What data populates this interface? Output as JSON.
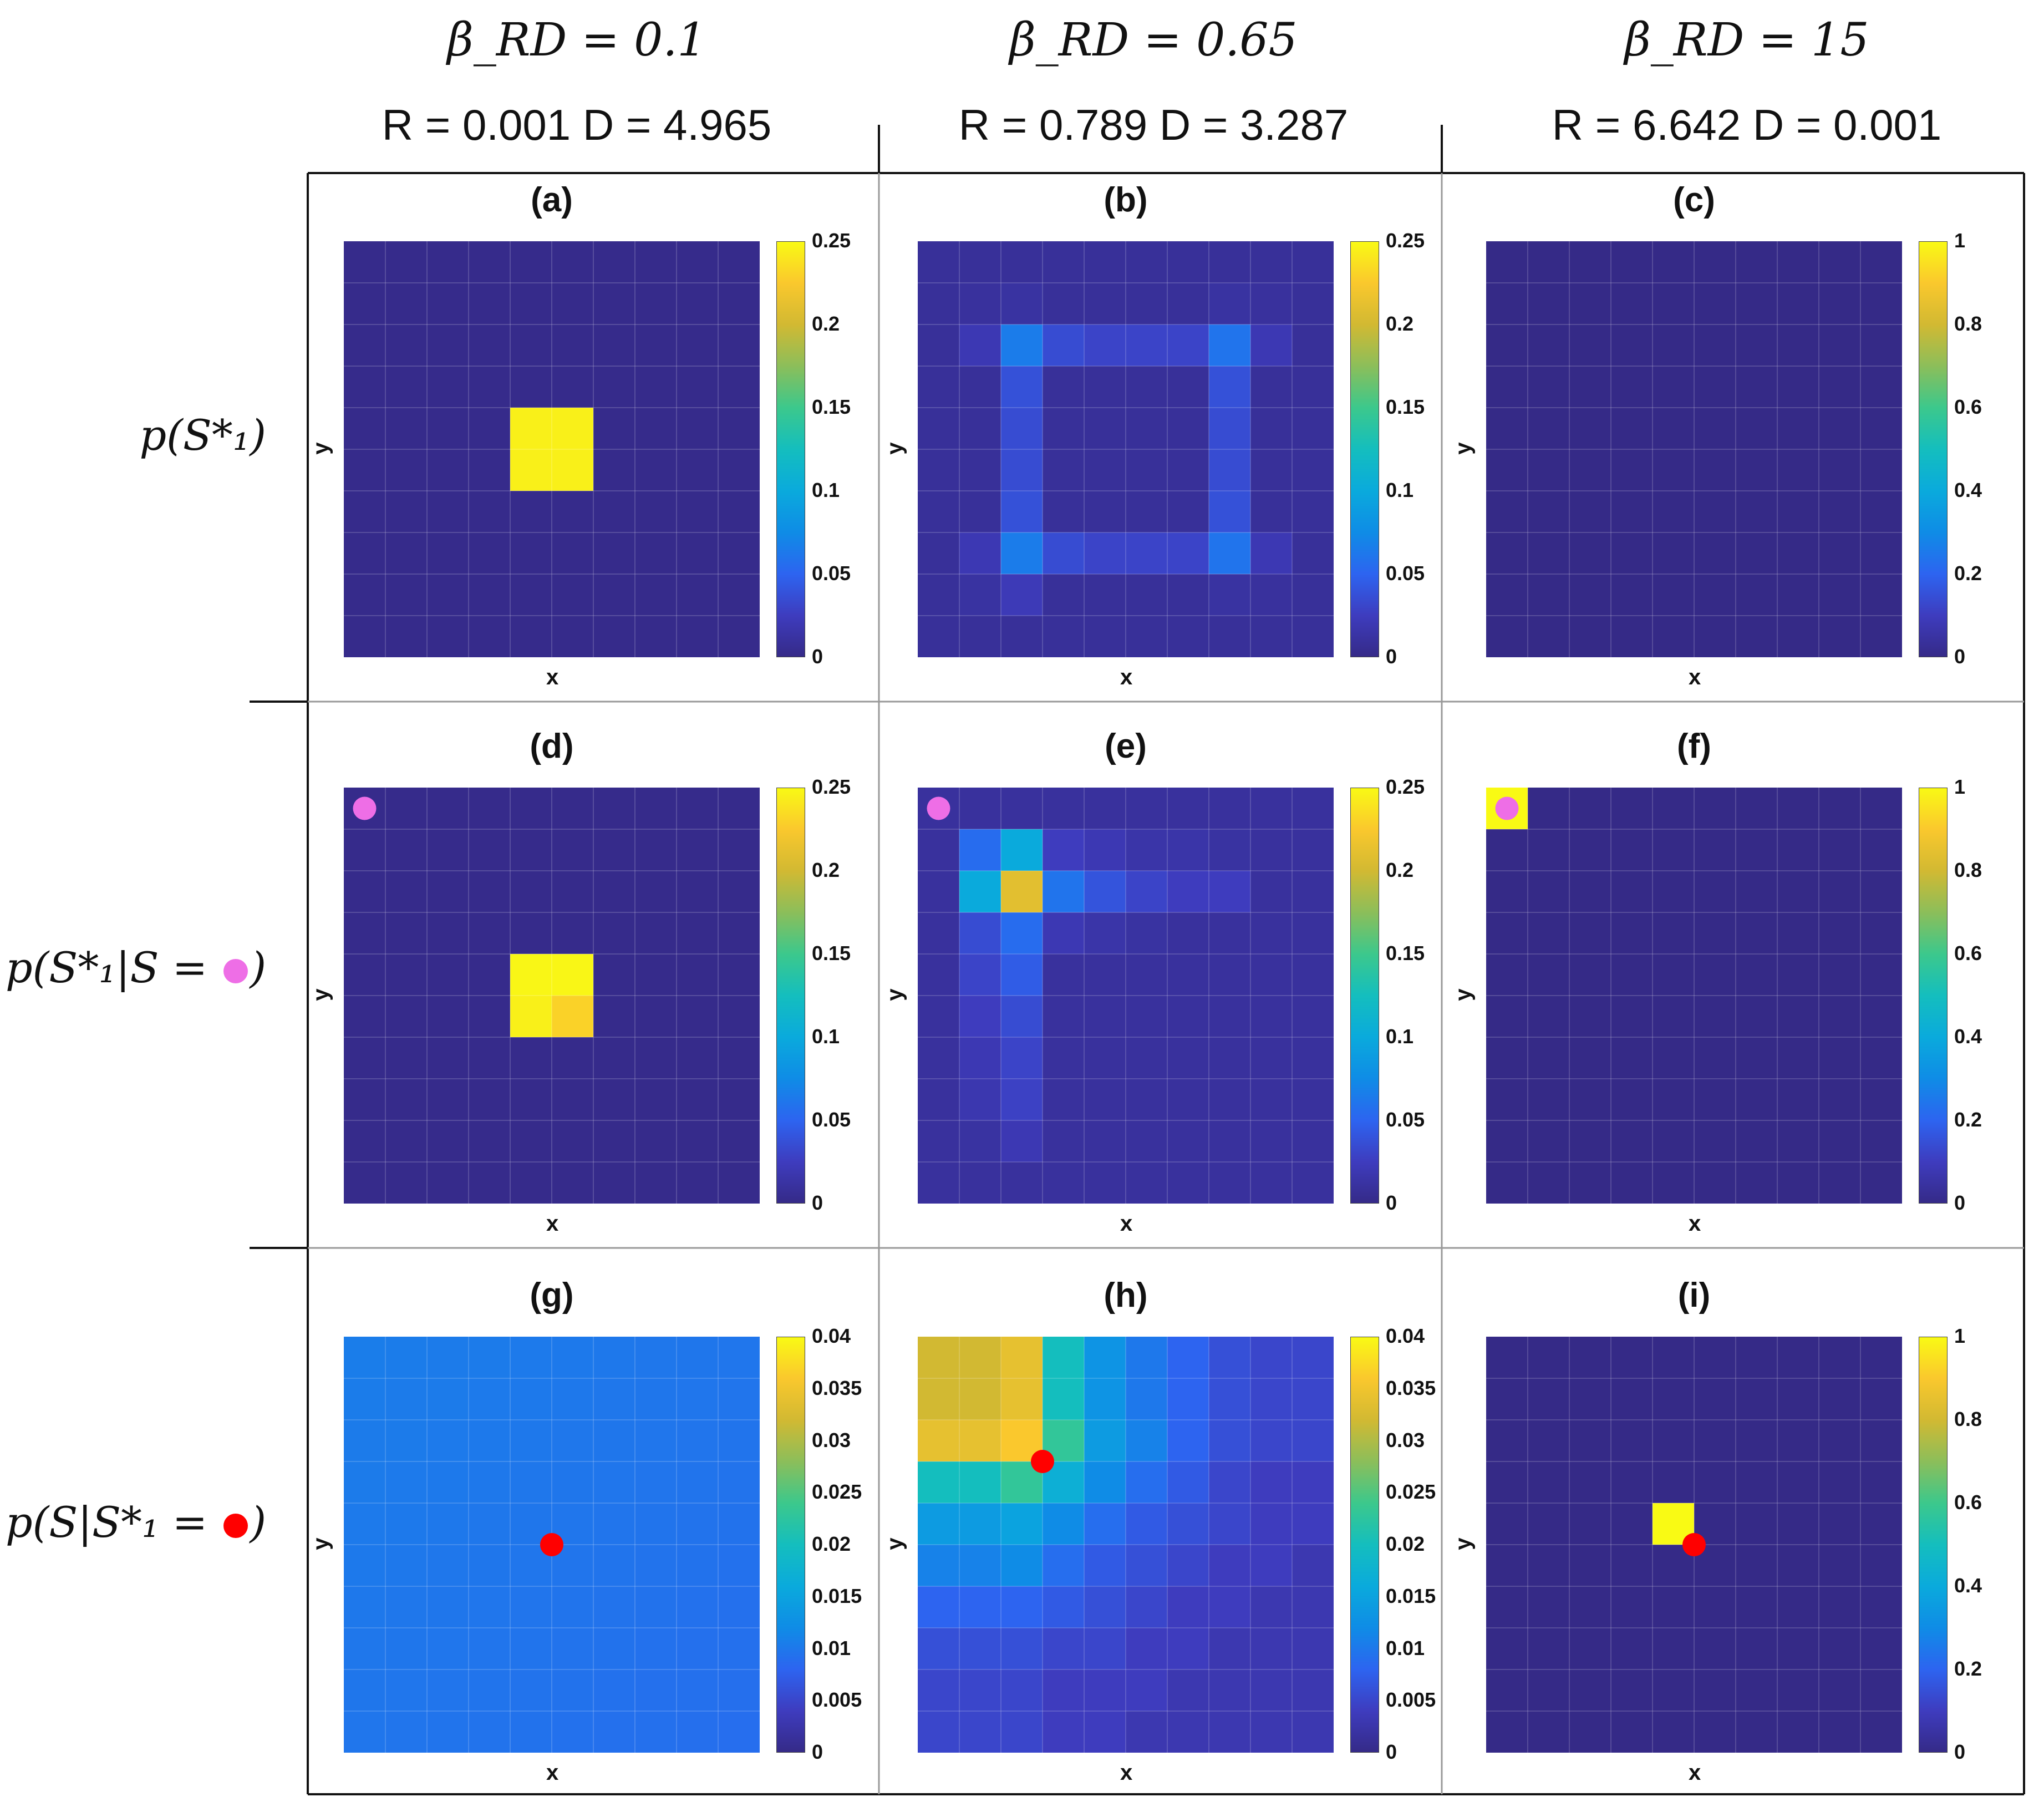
{
  "columns": [
    {
      "beta": "β_RD = 0.1",
      "rd": "R = 0.001   D = 4.965"
    },
    {
      "beta": "β_RD = 0.65",
      "rd": "R = 0.789   D = 3.287"
    },
    {
      "beta": "β_RD = 15",
      "rd": "R = 6.642   D = 0.001"
    }
  ],
  "rows": [
    {
      "label_prefix": "p(S*₁)",
      "label_suffix": "",
      "dot_color": ""
    },
    {
      "label_prefix": "p(S*₁|S = ",
      "label_suffix": ")",
      "dot_color": "#ee6ee6"
    },
    {
      "label_prefix": "p(S|S*₁ = ",
      "label_suffix": ")",
      "dot_color": "#ff0000"
    }
  ],
  "colors": {
    "colormap": "parula",
    "pink_marker": "#ee6ee6",
    "red_marker": "#ff0000"
  },
  "chart_data": [
    {
      "id": "a",
      "title": "(a)",
      "type": "heatmap",
      "xlabel": "x",
      "ylabel": "y",
      "grid": [
        10,
        10
      ],
      "clim": [
        0,
        0.25
      ],
      "colorbar_ticks": [
        "0",
        "0.05",
        "0.1",
        "0.15",
        "0.2",
        "0.25"
      ],
      "base": 0.002,
      "cells": [
        [
          4,
          4,
          0.245
        ],
        [
          5,
          4,
          0.245
        ],
        [
          4,
          5,
          0.245
        ],
        [
          5,
          5,
          0.245
        ]
      ],
      "marker": null
    },
    {
      "id": "b",
      "title": "(b)",
      "type": "heatmap",
      "xlabel": "x",
      "ylabel": "y",
      "grid": [
        10,
        10
      ],
      "clim": [
        0,
        0.25
      ],
      "colorbar_ticks": [
        "0",
        "0.05",
        "0.1",
        "0.15",
        "0.2",
        "0.25"
      ],
      "base": 0.008,
      "cells": [
        [
          1,
          2,
          0.02
        ],
        [
          2,
          2,
          0.065
        ],
        [
          3,
          2,
          0.035
        ],
        [
          4,
          2,
          0.03
        ],
        [
          5,
          2,
          0.03
        ],
        [
          6,
          2,
          0.03
        ],
        [
          7,
          2,
          0.06
        ],
        [
          8,
          2,
          0.02
        ],
        [
          1,
          7,
          0.02
        ],
        [
          2,
          7,
          0.065
        ],
        [
          3,
          7,
          0.035
        ],
        [
          4,
          7,
          0.03
        ],
        [
          5,
          7,
          0.03
        ],
        [
          6,
          7,
          0.03
        ],
        [
          7,
          7,
          0.06
        ],
        [
          8,
          7,
          0.02
        ],
        [
          2,
          3,
          0.038
        ],
        [
          2,
          4,
          0.035
        ],
        [
          2,
          5,
          0.035
        ],
        [
          2,
          6,
          0.038
        ],
        [
          7,
          3,
          0.038
        ],
        [
          7,
          4,
          0.035
        ],
        [
          7,
          5,
          0.035
        ],
        [
          7,
          6,
          0.038
        ],
        [
          2,
          1,
          0.012
        ],
        [
          7,
          1,
          0.012
        ],
        [
          2,
          8,
          0.022
        ],
        [
          7,
          8,
          0.012
        ],
        [
          1,
          1,
          0.01
        ],
        [
          8,
          1,
          0.01
        ],
        [
          1,
          8,
          0.012
        ],
        [
          8,
          8,
          0.01
        ]
      ],
      "marker": null
    },
    {
      "id": "c",
      "title": "(c)",
      "type": "heatmap",
      "xlabel": "x",
      "ylabel": "y",
      "grid": [
        10,
        10
      ],
      "clim": [
        0,
        1
      ],
      "colorbar_ticks": [
        "0",
        "0.2",
        "0.4",
        "0.6",
        "0.8",
        "1"
      ],
      "base": 0.0,
      "cells": [],
      "marker": null
    },
    {
      "id": "d",
      "title": "(d)",
      "type": "heatmap",
      "xlabel": "x",
      "ylabel": "y",
      "grid": [
        10,
        10
      ],
      "clim": [
        0,
        0.25
      ],
      "colorbar_ticks": [
        "0",
        "0.05",
        "0.1",
        "0.15",
        "0.2",
        "0.25"
      ],
      "base": 0.002,
      "cells": [
        [
          4,
          4,
          0.248
        ],
        [
          5,
          4,
          0.248
        ],
        [
          4,
          5,
          0.245
        ],
        [
          5,
          5,
          0.23
        ]
      ],
      "marker": {
        "col": 0,
        "row": 0,
        "color": "#ee6ee6"
      }
    },
    {
      "id": "e",
      "title": "(e)",
      "type": "heatmap",
      "xlabel": "x",
      "ylabel": "y",
      "grid": [
        10,
        10
      ],
      "clim": [
        0,
        0.25
      ],
      "colorbar_ticks": [
        "0",
        "0.05",
        "0.1",
        "0.15",
        "0.2",
        "0.25"
      ],
      "base": 0.01,
      "cells": [
        [
          1,
          1,
          0.055
        ],
        [
          2,
          1,
          0.1
        ],
        [
          3,
          1,
          0.025
        ],
        [
          4,
          1,
          0.02
        ],
        [
          5,
          1,
          0.015
        ],
        [
          6,
          1,
          0.015
        ],
        [
          7,
          1,
          0.012
        ],
        [
          1,
          2,
          0.1
        ],
        [
          2,
          2,
          0.21
        ],
        [
          3,
          2,
          0.06
        ],
        [
          4,
          2,
          0.04
        ],
        [
          5,
          2,
          0.03
        ],
        [
          6,
          2,
          0.025
        ],
        [
          7,
          2,
          0.025
        ],
        [
          1,
          3,
          0.035
        ],
        [
          2,
          3,
          0.055
        ],
        [
          3,
          3,
          0.02
        ],
        [
          4,
          3,
          0.015
        ],
        [
          5,
          3,
          0.012
        ],
        [
          1,
          4,
          0.03
        ],
        [
          2,
          4,
          0.045
        ],
        [
          1,
          5,
          0.025
        ],
        [
          2,
          5,
          0.035
        ],
        [
          1,
          6,
          0.02
        ],
        [
          2,
          6,
          0.03
        ],
        [
          1,
          7,
          0.018
        ],
        [
          2,
          7,
          0.028
        ],
        [
          1,
          8,
          0.012
        ],
        [
          2,
          8,
          0.02
        ]
      ],
      "marker": {
        "col": 0,
        "row": 0,
        "color": "#ee6ee6"
      }
    },
    {
      "id": "f",
      "title": "(f)",
      "type": "heatmap",
      "xlabel": "x",
      "ylabel": "y",
      "grid": [
        10,
        10
      ],
      "clim": [
        0,
        1
      ],
      "colorbar_ticks": [
        "0",
        "0.2",
        "0.4",
        "0.6",
        "0.8",
        "1"
      ],
      "base": 0.0,
      "cells": [
        [
          0,
          0,
          1.0
        ]
      ],
      "marker": {
        "col": 0,
        "row": 0,
        "color": "#ee6ee6"
      }
    },
    {
      "id": "g",
      "title": "(g)",
      "type": "heatmap",
      "xlabel": "x",
      "ylabel": "y",
      "grid": [
        10,
        10
      ],
      "clim": [
        0,
        0.04
      ],
      "colorbar_ticks": [
        "0",
        "0.005",
        "0.01",
        "0.015",
        "0.02",
        "0.025",
        "0.03",
        "0.035",
        "0.04"
      ],
      "base": 0.0095,
      "gradient": {
        "from": 0.0105,
        "to": 0.009
      },
      "cells": [],
      "marker": {
        "col": 4.5,
        "row": 4.5,
        "color": "#ff0000"
      }
    },
    {
      "id": "h",
      "title": "(h)",
      "type": "heatmap",
      "xlabel": "x",
      "ylabel": "y",
      "grid": [
        10,
        10
      ],
      "clim": [
        0,
        0.04
      ],
      "colorbar_ticks": [
        "0",
        "0.005",
        "0.01",
        "0.015",
        "0.02",
        "0.025",
        "0.03",
        "0.035",
        "0.04"
      ],
      "base": 0.003,
      "cells": [
        [
          0,
          0,
          0.032
        ],
        [
          1,
          0,
          0.032
        ],
        [
          2,
          0,
          0.034
        ],
        [
          3,
          0,
          0.02
        ],
        [
          4,
          0,
          0.013
        ],
        [
          5,
          0,
          0.01
        ],
        [
          6,
          0,
          0.008
        ],
        [
          7,
          0,
          0.006
        ],
        [
          8,
          0,
          0.005
        ],
        [
          9,
          0,
          0.005
        ],
        [
          0,
          1,
          0.032
        ],
        [
          1,
          1,
          0.032
        ],
        [
          2,
          1,
          0.034
        ],
        [
          3,
          1,
          0.02
        ],
        [
          4,
          1,
          0.013
        ],
        [
          5,
          1,
          0.01
        ],
        [
          6,
          1,
          0.008
        ],
        [
          7,
          1,
          0.006
        ],
        [
          8,
          1,
          0.005
        ],
        [
          9,
          1,
          0.005
        ],
        [
          0,
          2,
          0.034
        ],
        [
          1,
          2,
          0.034
        ],
        [
          2,
          2,
          0.036
        ],
        [
          3,
          2,
          0.023
        ],
        [
          4,
          2,
          0.014
        ],
        [
          5,
          2,
          0.011
        ],
        [
          6,
          2,
          0.008
        ],
        [
          7,
          2,
          0.006
        ],
        [
          8,
          2,
          0.005
        ],
        [
          9,
          2,
          0.005
        ],
        [
          0,
          3,
          0.02
        ],
        [
          1,
          3,
          0.02
        ],
        [
          2,
          3,
          0.023
        ],
        [
          3,
          3,
          0.017
        ],
        [
          4,
          3,
          0.012
        ],
        [
          5,
          3,
          0.009
        ],
        [
          6,
          3,
          0.007
        ],
        [
          7,
          3,
          0.005
        ],
        [
          8,
          3,
          0.004
        ],
        [
          9,
          3,
          0.004
        ],
        [
          0,
          4,
          0.014
        ],
        [
          1,
          4,
          0.014
        ],
        [
          2,
          4,
          0.015
        ],
        [
          3,
          4,
          0.012
        ],
        [
          4,
          4,
          0.009
        ],
        [
          5,
          4,
          0.007
        ],
        [
          6,
          4,
          0.006
        ],
        [
          7,
          4,
          0.005
        ],
        [
          8,
          4,
          0.004
        ],
        [
          9,
          4,
          0.004
        ],
        [
          0,
          5,
          0.011
        ],
        [
          1,
          5,
          0.011
        ],
        [
          2,
          5,
          0.012
        ],
        [
          3,
          5,
          0.009
        ],
        [
          4,
          5,
          0.007
        ],
        [
          5,
          5,
          0.006
        ],
        [
          6,
          5,
          0.005
        ],
        [
          7,
          5,
          0.004
        ],
        [
          8,
          5,
          0.004
        ],
        [
          9,
          5,
          0.003
        ],
        [
          0,
          6,
          0.008
        ],
        [
          1,
          6,
          0.008
        ],
        [
          2,
          6,
          0.008
        ],
        [
          3,
          6,
          0.007
        ],
        [
          4,
          6,
          0.006
        ],
        [
          5,
          6,
          0.005
        ],
        [
          6,
          6,
          0.004
        ],
        [
          7,
          6,
          0.004
        ],
        [
          8,
          6,
          0.003
        ],
        [
          9,
          6,
          0.003
        ],
        [
          0,
          7,
          0.006
        ],
        [
          1,
          7,
          0.006
        ],
        [
          2,
          7,
          0.006
        ],
        [
          3,
          7,
          0.005
        ],
        [
          4,
          7,
          0.005
        ],
        [
          5,
          7,
          0.004
        ],
        [
          6,
          7,
          0.004
        ],
        [
          7,
          7,
          0.003
        ],
        [
          8,
          7,
          0.003
        ],
        [
          9,
          7,
          0.003
        ],
        [
          0,
          8,
          0.005
        ],
        [
          1,
          8,
          0.005
        ],
        [
          2,
          8,
          0.005
        ],
        [
          3,
          8,
          0.004
        ],
        [
          4,
          8,
          0.004
        ],
        [
          5,
          8,
          0.004
        ],
        [
          6,
          8,
          0.003
        ],
        [
          7,
          8,
          0.003
        ],
        [
          8,
          8,
          0.003
        ],
        [
          9,
          8,
          0.003
        ],
        [
          0,
          9,
          0.005
        ],
        [
          1,
          9,
          0.005
        ],
        [
          2,
          9,
          0.005
        ],
        [
          3,
          9,
          0.004
        ],
        [
          4,
          9,
          0.004
        ],
        [
          5,
          9,
          0.003
        ],
        [
          6,
          9,
          0.003
        ],
        [
          7,
          9,
          0.003
        ],
        [
          8,
          9,
          0.003
        ],
        [
          9,
          9,
          0.003
        ]
      ],
      "marker": {
        "col": 2.5,
        "row": 2.5,
        "color": "#ff0000"
      }
    },
    {
      "id": "i",
      "title": "(i)",
      "type": "heatmap",
      "xlabel": "x",
      "ylabel": "y",
      "grid": [
        10,
        10
      ],
      "clim": [
        0,
        1
      ],
      "colorbar_ticks": [
        "0",
        "0.2",
        "0.4",
        "0.6",
        "0.8",
        "1"
      ],
      "base": 0.0,
      "cells": [
        [
          4,
          4,
          1.0
        ]
      ],
      "marker": {
        "col": 4.5,
        "row": 4.5,
        "color": "#ff0000"
      }
    }
  ]
}
